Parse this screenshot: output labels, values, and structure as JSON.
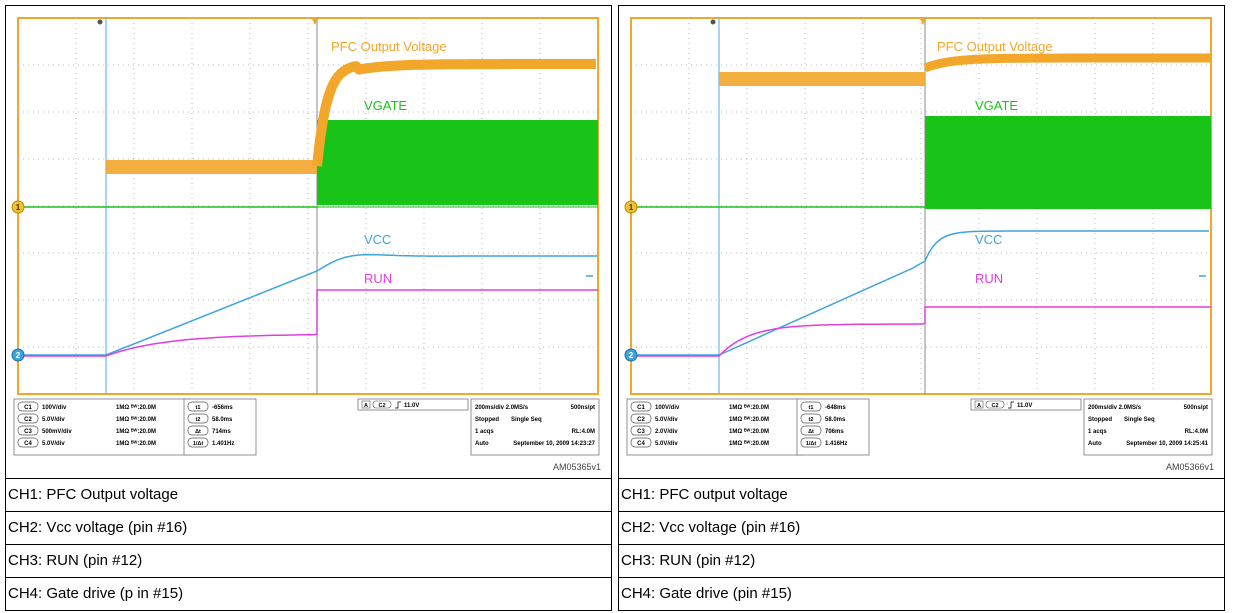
{
  "panels": [
    {
      "id": "left",
      "chart_data": {
        "type": "line",
        "annotations": [
          "PFC Output Voltage",
          "VGATE",
          "VCC",
          "RUN"
        ],
        "trigger": {
          "source": "C2",
          "slope": "rising",
          "level": "11.0V"
        },
        "timebase": "200ms/div 2.0MS/s",
        "record": "500ns/pt",
        "status": "Stopped",
        "mode": "Single Seq",
        "acqs": "1 acqs",
        "rl": "RL:4.0M",
        "auto": "Auto",
        "datetime": "September 10, 2009  14:23:27",
        "channels": [
          {
            "badge": "C1",
            "scale": "100V/div",
            "coupling": "1MΩ ᴮᵂ:20.0M",
            "color": "#f2a62a"
          },
          {
            "badge": "C2",
            "scale": "5.0V/div",
            "coupling": "1MΩ ᴮᵂ:20.0M",
            "color": "#3fa3de"
          },
          {
            "badge": "C3",
            "scale": "500mV/div",
            "coupling": "1MΩ ᴮᵂ:20.0M",
            "color": "#e23fe0"
          },
          {
            "badge": "C4",
            "scale": "5.0V/div",
            "coupling": "1MΩ ᴮᵂ:20.0M",
            "color": "#19c419"
          }
        ],
        "cursors": [
          {
            "badge": "t1",
            "value": "-656ms"
          },
          {
            "badge": "t2",
            "value": "58.0ms"
          },
          {
            "badge": "Δt",
            "value": "714ms"
          },
          {
            "badge": "1/Δt",
            "value": "1.401Hz"
          }
        ],
        "figure_id": "AM05365v1"
      },
      "captions": [
        "CH1: PFC Output voltage",
        "CH2: Vcc voltage (pin #16)",
        "CH3:  RUN (pin #12)",
        "CH4: Gate drive (p in #15)"
      ]
    },
    {
      "id": "right",
      "chart_data": {
        "type": "line",
        "annotations": [
          "PFC Output Voltage",
          "VGATE",
          "VCC",
          "RUN"
        ],
        "trigger": {
          "source": "C2",
          "slope": "rising",
          "level": "11.0V"
        },
        "timebase": "200ms/div 2.0MS/s",
        "record": "500ns/pt",
        "status": "Stopped",
        "mode": "Single Seq",
        "acqs": "1 acqs",
        "rl": "RL:4.0M",
        "auto": "Auto",
        "datetime": "September 10, 2009  14:25:41",
        "channels": [
          {
            "badge": "C1",
            "scale": "100V/div",
            "coupling": "1MΩ ᴮᵂ:20.0M",
            "color": "#f2a62a"
          },
          {
            "badge": "C2",
            "scale": "5.0V/div",
            "coupling": "1MΩ ᴮᵂ:20.0M",
            "color": "#3fa3de"
          },
          {
            "badge": "C3",
            "scale": "2.0V/div",
            "coupling": "1MΩ ᴮᵂ:20.0M",
            "color": "#e23fe0"
          },
          {
            "badge": "C4",
            "scale": "5.0V/div",
            "coupling": "1MΩ ᴮᵂ:20.0M",
            "color": "#19c419"
          }
        ],
        "cursors": [
          {
            "badge": "t1",
            "value": "-648ms"
          },
          {
            "badge": "t2",
            "value": "58.0ms"
          },
          {
            "badge": "Δt",
            "value": "706ms"
          },
          {
            "badge": "1/Δt",
            "value": "1.416Hz"
          }
        ],
        "figure_id": "AM05366v1"
      },
      "captions": [
        "CH1: PFC output voltage",
        "CH2: Vcc voltage (pin #16)",
        "CH3:  RUN (pin #12)",
        "CH4: Gate drive (pin #15)"
      ]
    }
  ],
  "colors": {
    "ch1": "#f2a62a",
    "ch2": "#3fa3de",
    "ch3": "#e23fe0",
    "ch4": "#19c419",
    "cursor": "#6db8e6",
    "grid": "#b9b9b9",
    "frame": "#f2a62a"
  }
}
